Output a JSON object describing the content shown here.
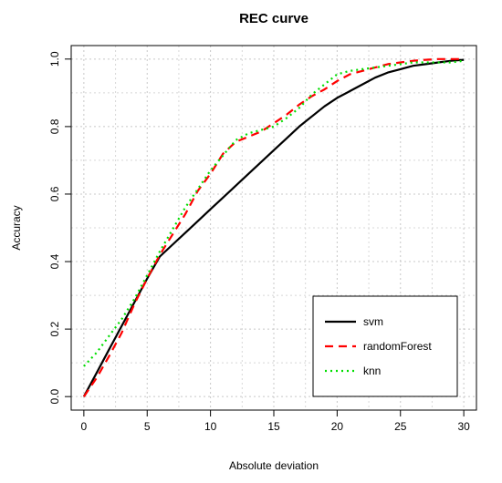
{
  "chart_data": {
    "type": "line",
    "title": "REC curve",
    "xlabel": "Absolute deviation",
    "ylabel": "Accuracy",
    "xlim": [
      -1,
      31
    ],
    "ylim": [
      -0.04,
      1.04
    ],
    "xticks": [
      0,
      5,
      10,
      15,
      20,
      25,
      30
    ],
    "xtick_labels": [
      "0",
      "5",
      "10",
      "15",
      "20",
      "25",
      "30"
    ],
    "yticks": [
      0.0,
      0.2,
      0.4,
      0.6,
      0.8,
      1.0
    ],
    "ytick_labels": [
      "0.0",
      "0.2",
      "0.4",
      "0.6",
      "0.8",
      "1.0"
    ],
    "grid": true,
    "legend_position": "bottom-right",
    "series": [
      {
        "name": "svm",
        "color": "#000000",
        "style": "solid",
        "x": [
          0,
          1,
          2,
          3,
          4,
          5,
          6,
          7,
          8,
          9,
          10,
          11,
          12,
          13,
          14,
          15,
          16,
          17,
          18,
          19,
          20,
          21,
          22,
          23,
          24,
          25,
          26,
          27,
          28,
          29,
          30
        ],
        "y": [
          0.0,
          0.07,
          0.14,
          0.21,
          0.28,
          0.35,
          0.415,
          0.45,
          0.485,
          0.52,
          0.555,
          0.59,
          0.625,
          0.66,
          0.695,
          0.73,
          0.765,
          0.8,
          0.83,
          0.86,
          0.885,
          0.905,
          0.925,
          0.945,
          0.96,
          0.97,
          0.98,
          0.985,
          0.99,
          0.995,
          0.998
        ]
      },
      {
        "name": "randomForest",
        "color": "#ff0000",
        "style": "dashed",
        "x": [
          0,
          1,
          2,
          3,
          4,
          5,
          6,
          7,
          8,
          9,
          10,
          11,
          12,
          13,
          14,
          15,
          16,
          17,
          18,
          19,
          20,
          21,
          22,
          23,
          24,
          25,
          26,
          27,
          28,
          29,
          30
        ],
        "y": [
          0.0,
          0.055,
          0.12,
          0.19,
          0.275,
          0.35,
          0.42,
          0.48,
          0.54,
          0.61,
          0.66,
          0.72,
          0.755,
          0.77,
          0.785,
          0.81,
          0.835,
          0.865,
          0.89,
          0.91,
          0.935,
          0.955,
          0.965,
          0.975,
          0.985,
          0.99,
          0.995,
          0.998,
          1.0,
          1.0,
          1.0
        ]
      },
      {
        "name": "knn",
        "color": "#00dd00",
        "style": "dotted",
        "x": [
          0,
          1,
          2,
          3,
          4,
          5,
          6,
          7,
          8,
          9,
          10,
          11,
          12,
          13,
          14,
          15,
          16,
          17,
          18,
          19,
          20,
          21,
          22,
          23,
          24,
          25,
          26,
          27,
          28,
          29,
          30
        ],
        "y": [
          0.09,
          0.13,
          0.18,
          0.23,
          0.29,
          0.36,
          0.43,
          0.495,
          0.56,
          0.615,
          0.67,
          0.715,
          0.76,
          0.78,
          0.79,
          0.8,
          0.825,
          0.855,
          0.895,
          0.925,
          0.955,
          0.965,
          0.97,
          0.975,
          0.98,
          0.985,
          0.99,
          0.99,
          0.99,
          0.99,
          0.995
        ]
      }
    ]
  }
}
